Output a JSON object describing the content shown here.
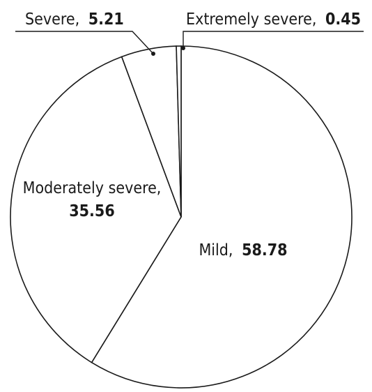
{
  "chart_data": {
    "type": "pie",
    "title": "",
    "slices": [
      {
        "name": "Mild",
        "value": 58.78,
        "label": "Mild,",
        "value_text": "58.78"
      },
      {
        "name": "Moderately severe",
        "value": 35.56,
        "label": "Moderately severe,",
        "value_text": "35.56"
      },
      {
        "name": "Severe",
        "value": 5.21,
        "label": "Severe,",
        "value_text": "5.21"
      },
      {
        "name": "Extremely severe",
        "value": 0.45,
        "label": "Extremely severe,",
        "value_text": "0.45"
      }
    ],
    "colors": {
      "fill": "#ffffff",
      "stroke": "#1a1a1a"
    },
    "legend": "none"
  }
}
